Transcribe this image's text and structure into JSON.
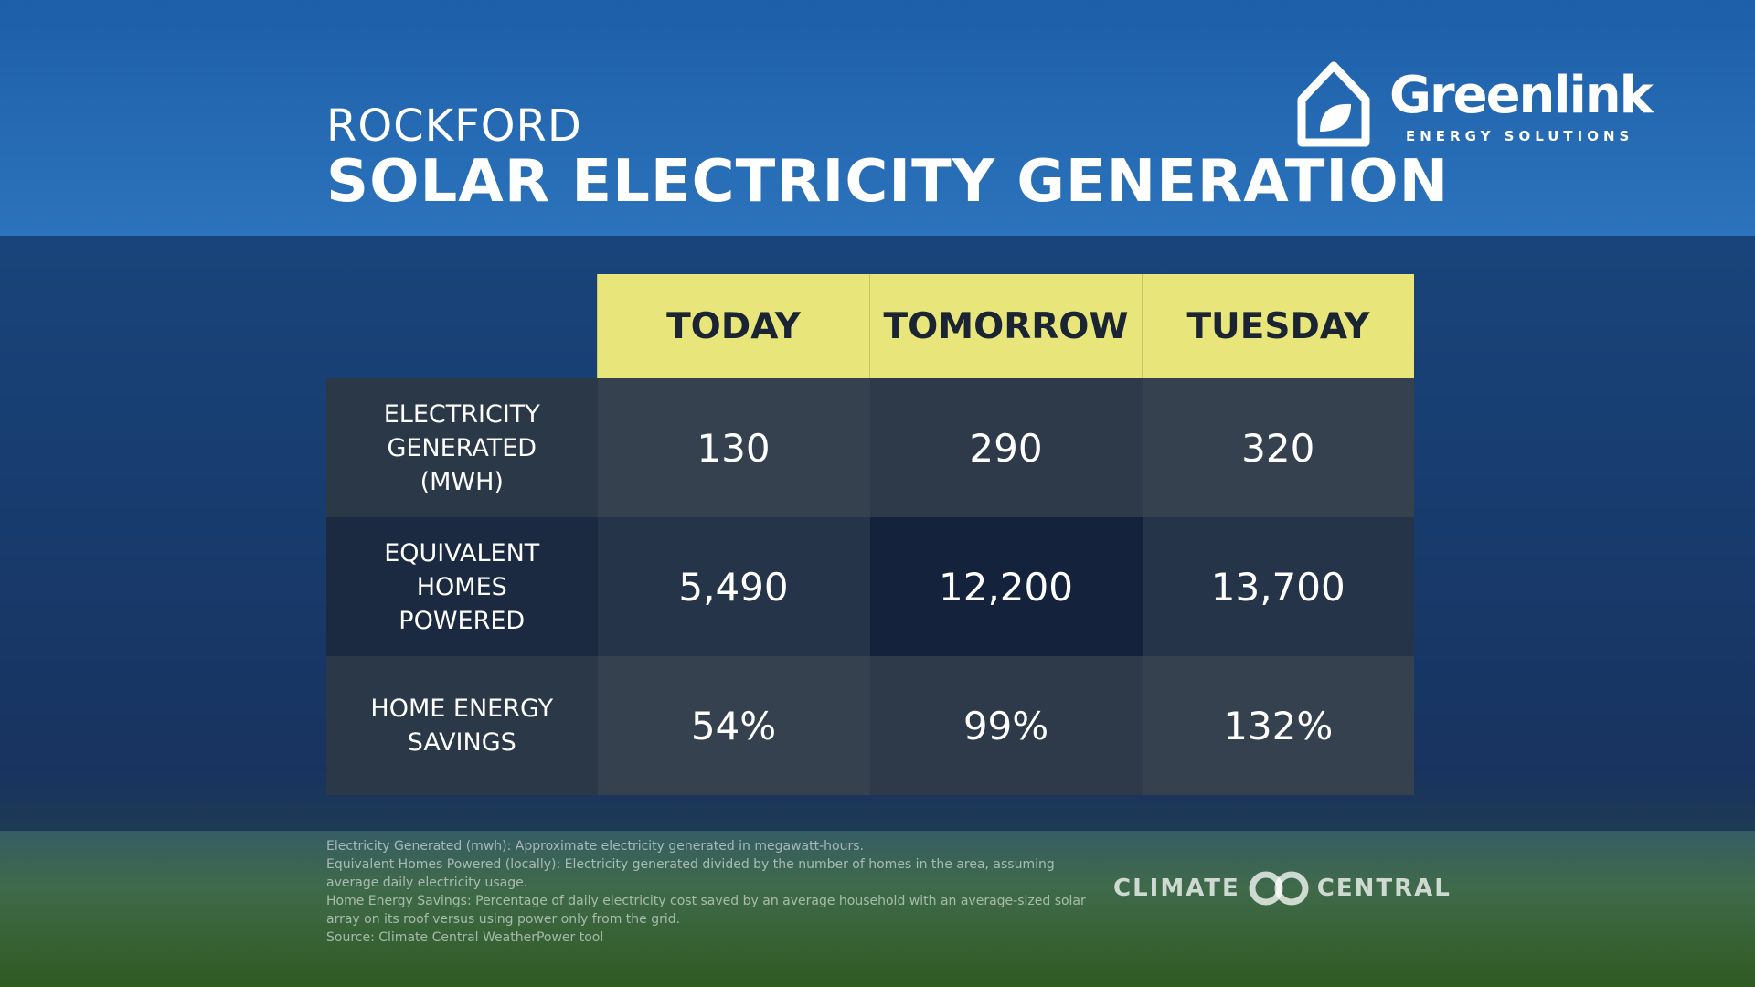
{
  "header": {
    "city": "ROCKFORD",
    "title": "SOLAR ELECTRICITY GENERATION"
  },
  "logo": {
    "name": "Greenlink",
    "tagline": "ENERGY SOLUTIONS"
  },
  "table": {
    "columns": [
      "TODAY",
      "TOMORROW",
      "TUESDAY"
    ],
    "rows": [
      {
        "label": "ELECTRICITY GENERATED (MWH)",
        "values": [
          "130",
          "290",
          "320"
        ]
      },
      {
        "label": "EQUIVALENT HOMES POWERED",
        "values": [
          "5,490",
          "12,200",
          "13,700"
        ]
      },
      {
        "label": "HOME ENERGY SAVINGS",
        "values": [
          "54%",
          "99%",
          "132%"
        ]
      }
    ]
  },
  "notes": [
    "Electricity Generated (mwh): Approximate electricity generated in megawatt-hours.",
    "Equivalent Homes Powered (locally): Electricity generated divided by the number of homes in the area, assuming average daily electricity usage.",
    "Home Energy Savings: Percentage of daily electricity cost saved by an average household with an average-sized solar array on its roof versus using power only from the grid.",
    "Source: Climate Central WeatherPower tool"
  ],
  "footer_logo": {
    "left": "CLIMATE",
    "right": "CENTRAL"
  }
}
